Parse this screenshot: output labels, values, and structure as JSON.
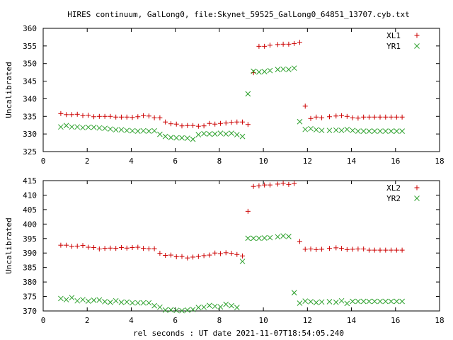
{
  "title": "HIRES continuum, GalLong0, file:Skynet_59525_GalLong0_64851_13707.cyb.txt",
  "xlabel": "rel seconds : UT date 2021-11-07T18:54:05.240",
  "colors": {
    "series_a": "#cc0000",
    "series_b": "#2ca02c",
    "axis": "#000000",
    "background": "#ffffff"
  },
  "chart_data": [
    {
      "type": "scatter",
      "ylabel": "Uncalibrated",
      "xlim": [
        0,
        18
      ],
      "ylim": [
        325,
        360
      ],
      "xticks": [
        0,
        2,
        4,
        6,
        8,
        10,
        12,
        14,
        16,
        18
      ],
      "yticks": [
        325,
        330,
        335,
        340,
        345,
        350,
        355,
        360
      ],
      "legend_position": "top-right",
      "series": [
        {
          "name": "XL1",
          "marker": "plus",
          "x": [
            0.8,
            1.05,
            1.3,
            1.55,
            1.8,
            2.05,
            2.3,
            2.55,
            2.8,
            3.05,
            3.3,
            3.55,
            3.8,
            4.05,
            4.3,
            4.55,
            4.8,
            5.05,
            5.3,
            5.55,
            5.8,
            6.05,
            6.3,
            6.55,
            6.8,
            7.05,
            7.3,
            7.55,
            7.8,
            8.05,
            8.3,
            8.55,
            8.8,
            9.05,
            9.3,
            9.55,
            9.8,
            10.05,
            10.3,
            10.65,
            10.9,
            11.15,
            11.4,
            11.65,
            11.9,
            12.15,
            12.4,
            12.65,
            13.0,
            13.3,
            13.55,
            13.8,
            14.05,
            14.3,
            14.55,
            14.8,
            15.05,
            15.3,
            15.55,
            15.8,
            16.05,
            16.3
          ],
          "y": [
            335.8,
            335.5,
            335.5,
            335.6,
            335.2,
            335.3,
            334.9,
            335.0,
            335.0,
            335.0,
            334.8,
            334.8,
            334.8,
            334.7,
            334.9,
            335.2,
            335.1,
            334.6,
            334.6,
            333.4,
            332.9,
            332.8,
            332.3,
            332.4,
            332.4,
            332.2,
            332.3,
            333.0,
            332.8,
            333.0,
            333.1,
            333.3,
            333.4,
            333.4,
            332.7,
            347.4,
            354.9,
            354.9,
            355.2,
            355.4,
            355.5,
            355.5,
            355.7,
            356.0,
            337.9,
            334.4,
            334.8,
            334.6,
            334.9,
            335.1,
            335.2,
            335.0,
            334.6,
            334.5,
            334.8,
            334.8,
            334.8,
            334.8,
            334.8,
            334.8,
            334.8,
            334.8
          ]
        },
        {
          "name": "YR1",
          "marker": "cross",
          "x": [
            0.8,
            1.05,
            1.3,
            1.55,
            1.8,
            2.05,
            2.3,
            2.55,
            2.8,
            3.05,
            3.3,
            3.55,
            3.8,
            4.05,
            4.3,
            4.55,
            4.8,
            5.05,
            5.3,
            5.55,
            5.8,
            6.05,
            6.3,
            6.55,
            6.8,
            7.05,
            7.3,
            7.55,
            7.8,
            8.05,
            8.3,
            8.55,
            8.8,
            9.05,
            9.3,
            9.55,
            9.8,
            10.05,
            10.3,
            10.65,
            10.9,
            11.15,
            11.4,
            11.65,
            11.9,
            12.15,
            12.4,
            12.65,
            13.0,
            13.3,
            13.55,
            13.8,
            14.05,
            14.3,
            14.55,
            14.8,
            15.05,
            15.3,
            15.55,
            15.8,
            16.05,
            16.3
          ],
          "y": [
            332.0,
            332.4,
            332.0,
            332.0,
            331.8,
            331.9,
            331.9,
            331.7,
            331.6,
            331.4,
            331.2,
            331.2,
            331.0,
            330.9,
            330.8,
            330.9,
            330.8,
            330.9,
            329.9,
            329.3,
            329.0,
            328.9,
            328.9,
            328.8,
            328.5,
            329.8,
            330.1,
            330.0,
            330.0,
            330.2,
            330.0,
            330.2,
            329.8,
            329.3,
            341.4,
            347.8,
            347.6,
            347.7,
            348.0,
            348.3,
            348.4,
            348.3,
            348.7,
            333.5,
            331.3,
            331.5,
            331.2,
            331.0,
            331.0,
            331.1,
            331.0,
            331.3,
            331.0,
            330.8,
            330.8,
            330.8,
            330.8,
            330.8,
            330.8,
            330.8,
            330.8,
            330.8
          ]
        }
      ]
    },
    {
      "type": "scatter",
      "ylabel": "Uncalibrated",
      "xlim": [
        0,
        18
      ],
      "ylim": [
        370,
        415
      ],
      "xticks": [
        0,
        2,
        4,
        6,
        8,
        10,
        12,
        14,
        16,
        18
      ],
      "yticks": [
        370,
        375,
        380,
        385,
        390,
        395,
        400,
        405,
        410,
        415
      ],
      "legend_position": "top-right",
      "series": [
        {
          "name": "XL2",
          "marker": "plus",
          "x": [
            0.8,
            1.05,
            1.3,
            1.55,
            1.8,
            2.05,
            2.3,
            2.55,
            2.8,
            3.05,
            3.3,
            3.55,
            3.8,
            4.05,
            4.3,
            4.55,
            4.8,
            5.05,
            5.3,
            5.55,
            5.8,
            6.05,
            6.3,
            6.55,
            6.8,
            7.05,
            7.3,
            7.55,
            7.8,
            8.05,
            8.3,
            8.55,
            8.8,
            9.05,
            9.3,
            9.55,
            9.8,
            10.05,
            10.3,
            10.65,
            10.9,
            11.15,
            11.4,
            11.65,
            11.9,
            12.15,
            12.4,
            12.65,
            13.0,
            13.3,
            13.55,
            13.8,
            14.05,
            14.3,
            14.55,
            14.8,
            15.05,
            15.3,
            15.55,
            15.8,
            16.05,
            16.3
          ],
          "y": [
            392.7,
            392.7,
            392.3,
            392.4,
            392.6,
            392.0,
            391.9,
            391.4,
            391.6,
            391.7,
            391.6,
            391.9,
            391.7,
            391.9,
            392.0,
            391.6,
            391.5,
            391.5,
            389.9,
            389.2,
            389.3,
            388.7,
            388.8,
            388.3,
            388.6,
            388.8,
            389.1,
            389.3,
            390.0,
            389.8,
            390.1,
            389.9,
            389.5,
            389.0,
            404.4,
            413.0,
            413.2,
            413.5,
            413.5,
            413.8,
            414.1,
            413.7,
            414.0,
            394.0,
            391.3,
            391.4,
            391.2,
            391.3,
            391.6,
            391.8,
            391.6,
            391.2,
            391.3,
            391.4,
            391.4,
            391.0,
            391.0,
            391.0,
            391.0,
            391.0,
            391.0,
            391.0
          ]
        },
        {
          "name": "YR2",
          "marker": "cross",
          "x": [
            0.8,
            1.05,
            1.3,
            1.55,
            1.8,
            2.05,
            2.3,
            2.55,
            2.8,
            3.05,
            3.3,
            3.55,
            3.8,
            4.05,
            4.3,
            4.55,
            4.8,
            5.05,
            5.3,
            5.55,
            5.8,
            6.05,
            6.3,
            6.55,
            6.8,
            7.05,
            7.3,
            7.55,
            7.8,
            8.05,
            8.3,
            8.55,
            8.8,
            9.05,
            9.3,
            9.55,
            9.8,
            10.05,
            10.3,
            10.65,
            10.9,
            11.15,
            11.4,
            11.65,
            11.9,
            12.15,
            12.4,
            12.65,
            13.0,
            13.3,
            13.55,
            13.8,
            14.05,
            14.3,
            14.55,
            14.8,
            15.05,
            15.3,
            15.55,
            15.8,
            16.05,
            16.3
          ],
          "y": [
            374.3,
            373.9,
            374.6,
            373.5,
            373.9,
            373.4,
            373.7,
            373.8,
            373.2,
            373.0,
            373.5,
            373.0,
            373.1,
            372.8,
            372.8,
            372.8,
            372.8,
            371.8,
            371.3,
            370.3,
            370.4,
            370.2,
            370.1,
            370.3,
            370.5,
            371.2,
            371.3,
            371.9,
            371.6,
            371.4,
            372.3,
            371.8,
            371.2,
            387.1,
            395.1,
            395.1,
            395.1,
            395.2,
            395.3,
            395.6,
            395.9,
            395.7,
            376.3,
            372.7,
            373.4,
            373.2,
            372.9,
            373.1,
            373.2,
            373.0,
            373.5,
            372.6,
            373.3,
            373.3,
            373.3,
            373.3,
            373.3,
            373.3,
            373.3,
            373.3,
            373.3,
            373.3
          ]
        }
      ]
    }
  ]
}
